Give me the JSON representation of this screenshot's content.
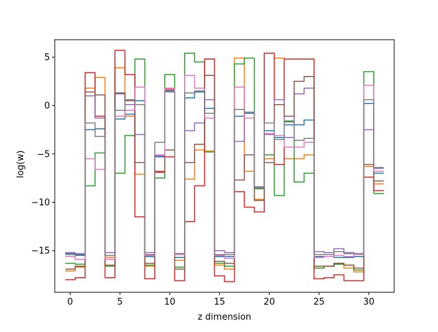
{
  "chart_data": {
    "type": "line",
    "drawstyle": "steps-mid",
    "xlabel": "z dimension",
    "ylabel": "log(w)",
    "xlim": [
      -1.55,
      32.55
    ],
    "ylim": [
      -19.3,
      6.8
    ],
    "xticks": [
      0,
      5,
      10,
      15,
      20,
      25,
      30
    ],
    "yticks": [
      -15,
      -10,
      -5,
      0,
      5
    ],
    "grid": false,
    "legend": "none",
    "x": [
      0,
      1,
      2,
      3,
      4,
      5,
      6,
      7,
      8,
      9,
      10,
      11,
      12,
      13,
      14,
      15,
      16,
      17,
      18,
      19,
      20,
      21,
      22,
      23,
      24,
      25,
      26,
      27,
      28,
      29,
      30,
      31
    ],
    "series": [
      {
        "color": "#1f77b4",
        "values": [
          -15.3,
          -15.4,
          -2.5,
          -2.4,
          -15.5,
          -1.4,
          -0.9,
          0.5,
          -15.6,
          -5.3,
          1.5,
          -15.7,
          0.8,
          1.4,
          -0.3,
          -15.6,
          -15.6,
          -1.1,
          -0.8,
          -8.6,
          -2.6,
          -3.3,
          -2.0,
          -2.0,
          -1.5,
          -15.6,
          -15.6,
          -15.7,
          -15.7,
          -15.6,
          0.2,
          -7.0
        ]
      },
      {
        "color": "#ff7f0e",
        "values": [
          -17.1,
          -16.7,
          1.8,
          2.9,
          -15.7,
          3.9,
          -1.1,
          -7.1,
          -16.6,
          -5.1,
          1.7,
          -16.0,
          -7.6,
          -4.6,
          -4.7,
          -16.5,
          -16.9,
          4.9,
          -6.8,
          -9.7,
          -5.5,
          4.9,
          -5.5,
          -5.5,
          -5.1,
          -16.8,
          -16.6,
          -16.3,
          -16.8,
          -17.2,
          -6.3,
          -8.1
        ]
      },
      {
        "color": "#2ca02c",
        "values": [
          -16.3,
          -16.4,
          -8.3,
          -4.9,
          -16.6,
          -7.0,
          -3.1,
          4.8,
          -16.5,
          -7.5,
          3.2,
          -16.7,
          5.4,
          4.5,
          -4.8,
          -16.3,
          -16.6,
          4.3,
          4.9,
          -8.6,
          -5.1,
          -9.3,
          -1.6,
          -7.9,
          -7.0,
          -16.8,
          -16.6,
          -16.4,
          -16.5,
          -17.0,
          3.5,
          -9.1
        ]
      },
      {
        "color": "#d62728",
        "values": [
          -18.0,
          -17.8,
          3.4,
          -1.1,
          -17.8,
          5.7,
          3.2,
          -11.5,
          -17.9,
          -6.9,
          -5.3,
          -18.1,
          -12.0,
          -8.3,
          4.8,
          -17.6,
          -18.2,
          -8.9,
          -10.5,
          -11.0,
          5.4,
          -6.1,
          4.8,
          4.8,
          4.8,
          -17.9,
          -17.8,
          -17.5,
          -18.1,
          -18.1,
          -7.4,
          -8.8
        ]
      },
      {
        "color": "#9467bd",
        "values": [
          -15.2,
          -15.3,
          1.0,
          -1.3,
          -15.2,
          1.2,
          0.1,
          -3.0,
          -15.2,
          -5.2,
          1.6,
          -15.3,
          -2.6,
          -1.8,
          0.6,
          -15.0,
          -15.2,
          -3.7,
          -0.7,
          -8.4,
          -3.0,
          0.6,
          -3.3,
          1.2,
          1.8,
          -15.1,
          -15.2,
          -14.8,
          -15.2,
          -15.3,
          -2.5,
          -6.5
        ]
      },
      {
        "color": "#8c564b",
        "values": [
          -16.9,
          -16.6,
          1.4,
          1.1,
          -16.5,
          1.3,
          0.5,
          -5.9,
          -16.3,
          -6.8,
          -4.6,
          -16.9,
          -5.9,
          -4.0,
          3.1,
          -16.1,
          -16.3,
          -7.7,
          -5.1,
          -9.8,
          -5.9,
          0.1,
          -1.1,
          2.5,
          3.0,
          -16.6,
          -16.6,
          -16.3,
          -16.5,
          -16.8,
          -6.1,
          -7.8
        ]
      },
      {
        "color": "#e377c2",
        "values": [
          -15.6,
          -15.9,
          -5.5,
          -6.6,
          -15.9,
          -1.1,
          -0.5,
          1.9,
          -15.5,
          -5.1,
          1.8,
          -15.4,
          3.1,
          1.8,
          -1.3,
          -15.5,
          -15.8,
          1.9,
          -1.3,
          -8.5,
          -2.9,
          -3.1,
          -4.3,
          -4.3,
          -3.8,
          -15.7,
          -15.6,
          -15.5,
          -15.6,
          -15.4,
          2.1,
          -6.8
        ]
      },
      {
        "color": "#7f7f7f",
        "values": [
          -15.4,
          -15.5,
          -1.8,
          -3.2,
          -15.5,
          -0.5,
          0.6,
          0.1,
          -15.4,
          -3.8,
          1.4,
          -15.3,
          1.3,
          1.5,
          -0.8,
          -15.4,
          -15.4,
          -0.4,
          -0.7,
          -8.5,
          -1.8,
          -3.5,
          -1.7,
          -3.6,
          -3.4,
          -15.4,
          -15.4,
          -15.1,
          -15.3,
          -15.3,
          0.6,
          -6.4
        ]
      }
    ]
  }
}
